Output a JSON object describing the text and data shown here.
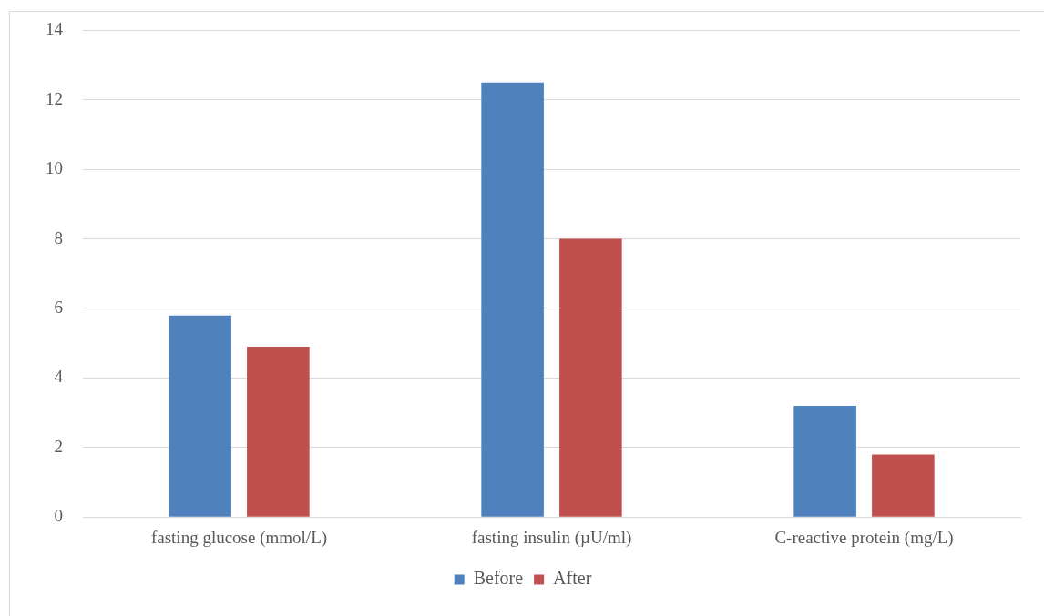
{
  "chart_data": {
    "type": "bar",
    "categories": [
      "fasting glucose (mmol/L)",
      "fasting insulin (µU/ml)",
      "C-reactive protein (mg/L)"
    ],
    "series": [
      {
        "name": "Before",
        "color": "#4f81bd",
        "values": [
          5.8,
          12.5,
          3.2
        ]
      },
      {
        "name": "After",
        "color": "#c0504d",
        "values": [
          4.9,
          8,
          1.8
        ]
      }
    ],
    "ylim": [
      0,
      14
    ],
    "yticks": [
      0,
      2,
      4,
      6,
      8,
      10,
      12,
      14
    ],
    "grid": "y",
    "legend": "bottom"
  }
}
